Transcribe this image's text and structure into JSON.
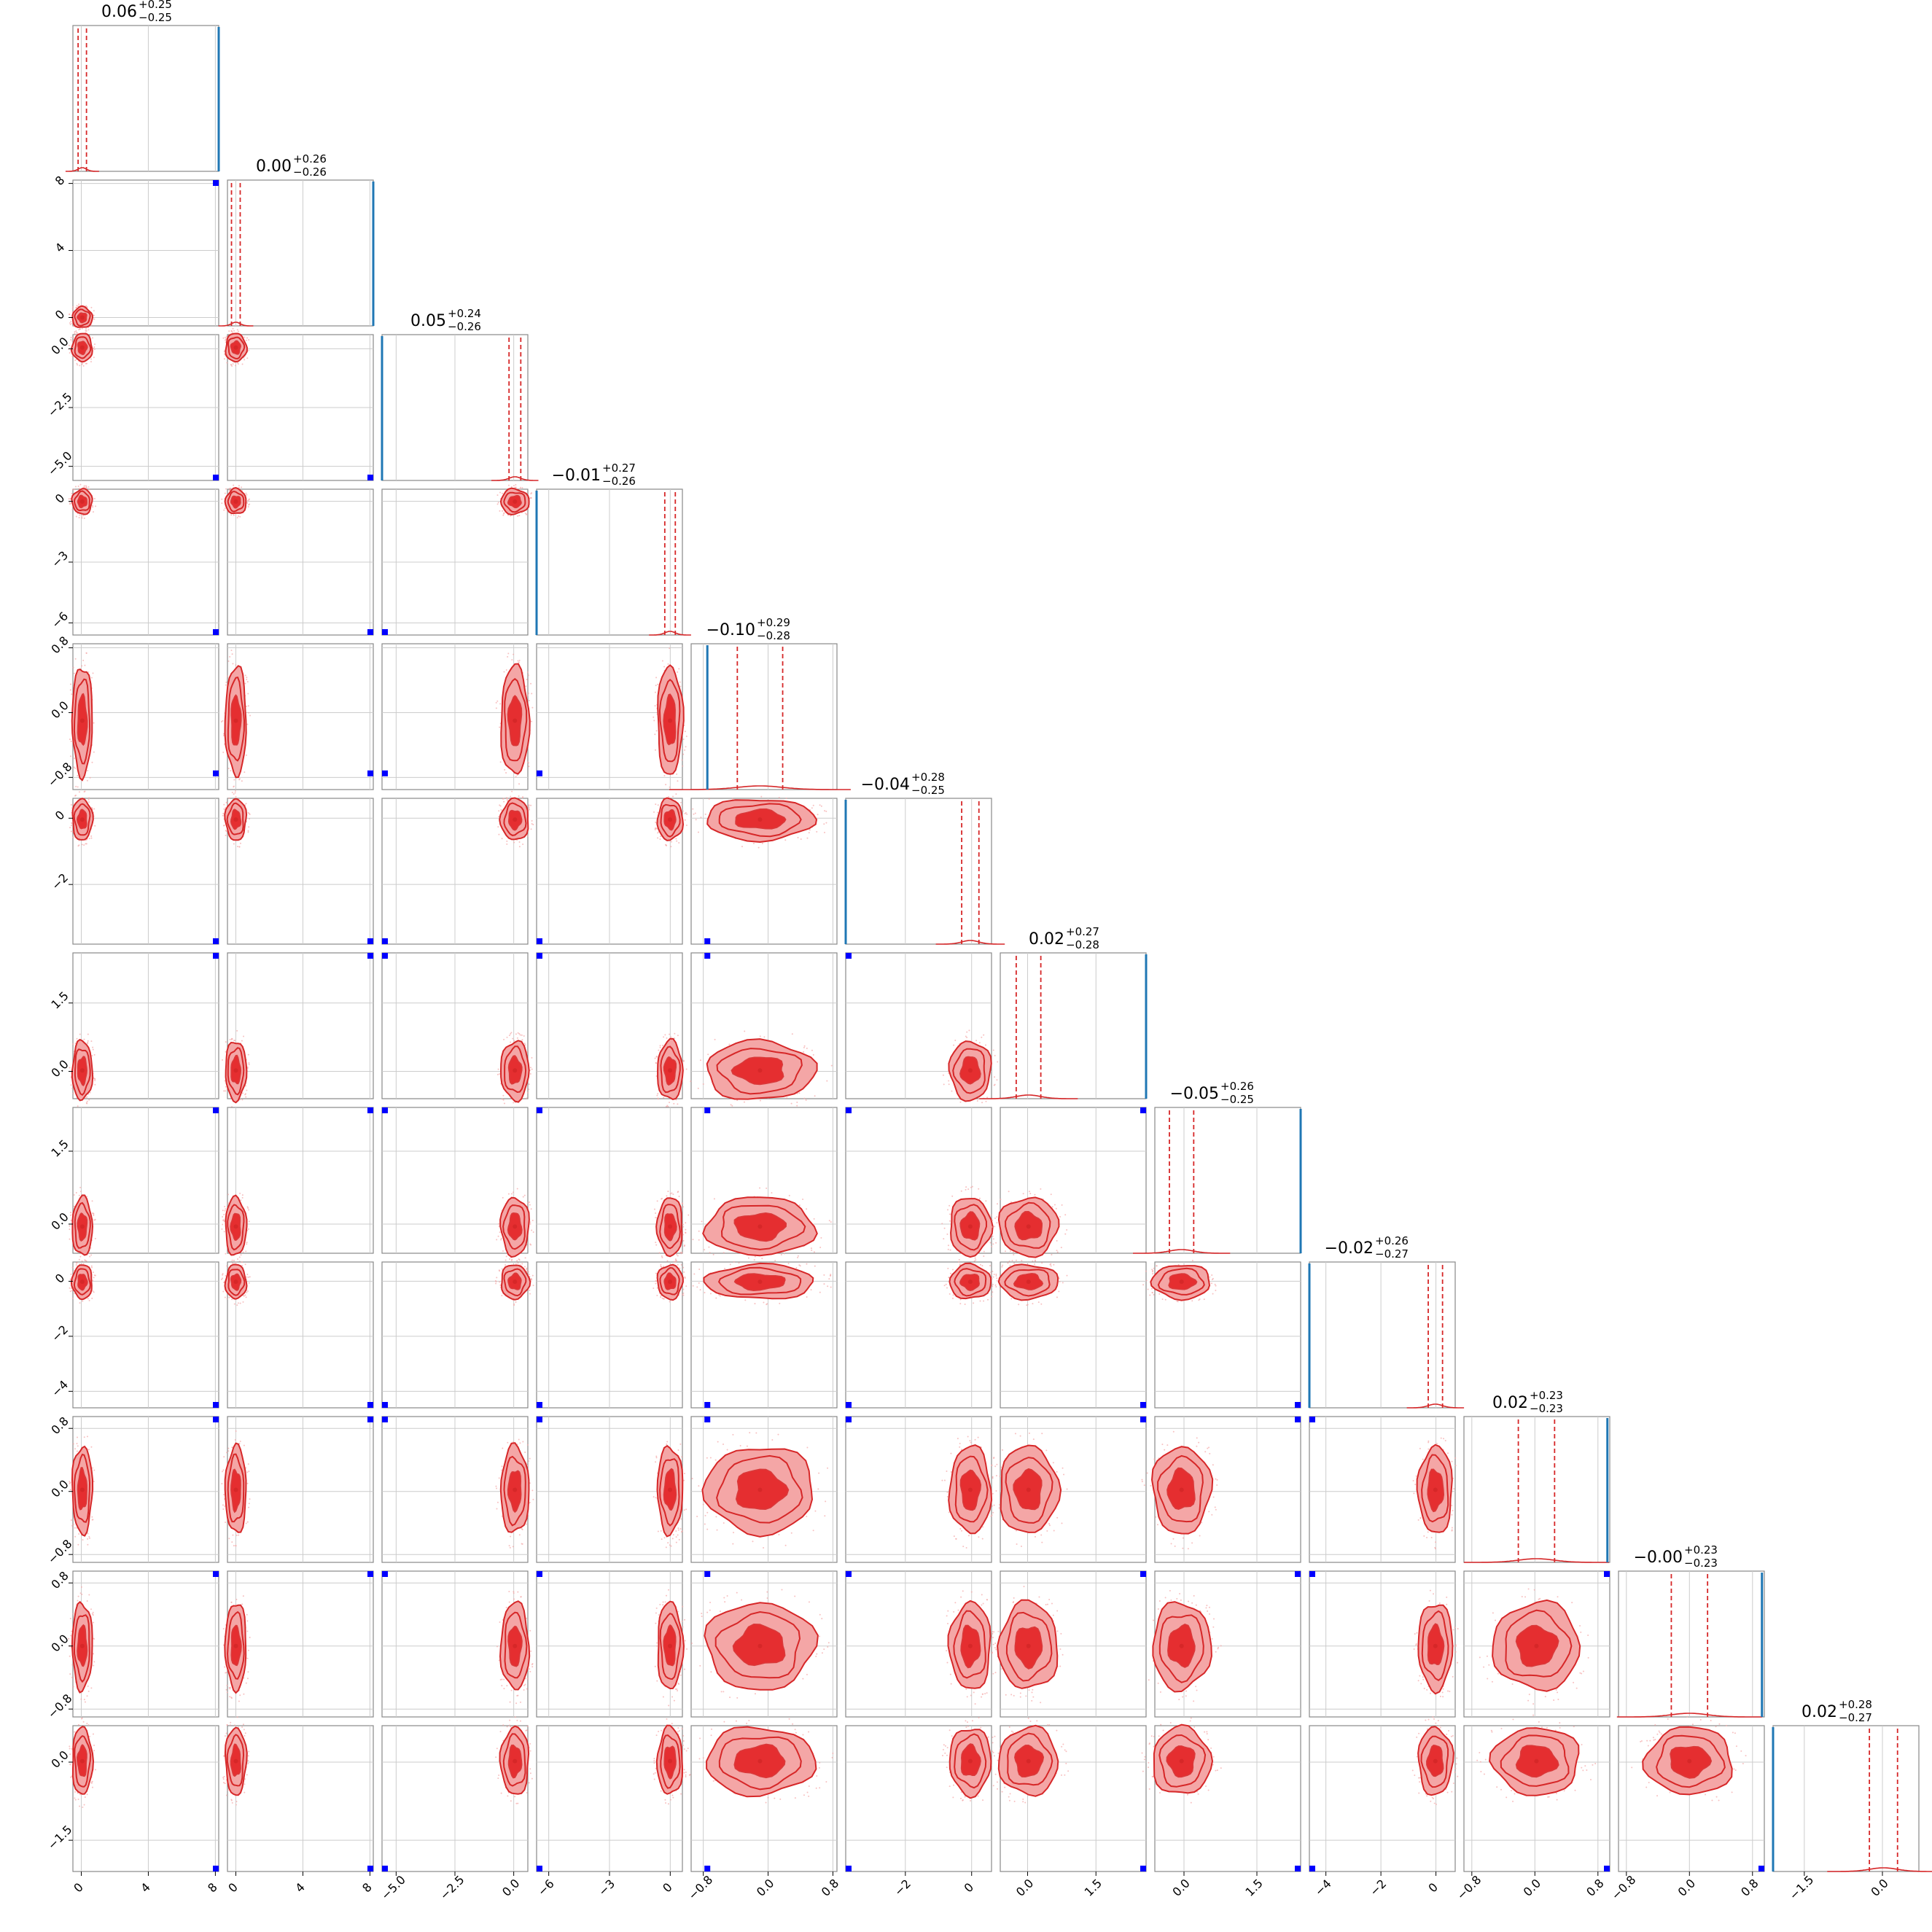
{
  "chart_data": {
    "type": "corner",
    "n_params": 12,
    "grid": true,
    "colors": {
      "contour": "#d62728",
      "fill_inner": "#e31a1c",
      "fill_outer": "#f4a6a6",
      "quantile_line": "#d62728",
      "truth_marker": "#0000ff",
      "truth_hist": "#1f77b4",
      "grid": "#cccccc",
      "frame": "#888888"
    },
    "params": [
      {
        "median": "0.06",
        "plus": "+0.25",
        "minus": "−0.25",
        "range": [
          -0.5,
          8.2
        ],
        "ticks": [
          0,
          4,
          8
        ],
        "tick_labels": [
          "0",
          "4",
          "8"
        ],
        "mean": 0.06,
        "sigma": 0.25,
        "truth": 8.2,
        "truth_y": null
      },
      {
        "median": "0.00",
        "plus": "+0.26",
        "minus": "−0.26",
        "range": [
          -0.5,
          8.2
        ],
        "ticks": [
          0,
          4,
          8
        ],
        "tick_labels": [
          "0",
          "4",
          "8"
        ],
        "mean": 0.0,
        "sigma": 0.26,
        "truth": 8.2,
        "truth_y": 8.2
      },
      {
        "median": "0.05",
        "plus": "+0.24",
        "minus": "−0.26",
        "range": [
          -5.6,
          0.6
        ],
        "ticks": [
          -5.0,
          -2.5,
          0.0
        ],
        "tick_labels": [
          "−5.0",
          "−2.5",
          "0.0"
        ],
        "mean": 0.05,
        "sigma": 0.25,
        "truth": -5.6,
        "truth_y": -5.6
      },
      {
        "median": "−0.01",
        "plus": "+0.27",
        "minus": "−0.26",
        "range": [
          -6.6,
          0.6
        ],
        "ticks": [
          -6,
          -3,
          0
        ],
        "tick_labels": [
          "−6",
          "−3",
          "0"
        ],
        "mean": -0.01,
        "sigma": 0.26,
        "truth": -6.6,
        "truth_y": -6.6
      },
      {
        "median": "−0.10",
        "plus": "+0.29",
        "minus": "−0.28",
        "range": [
          -0.95,
          0.85
        ],
        "ticks": [
          -0.8,
          0.0,
          0.8
        ],
        "tick_labels": [
          "−0.8",
          "0.0",
          "0.8"
        ],
        "mean": -0.1,
        "sigma": 0.28,
        "truth": -0.75,
        "truth_y": -0.75
      },
      {
        "median": "−0.04",
        "plus": "+0.28",
        "minus": "−0.25",
        "range": [
          -3.8,
          0.6
        ],
        "ticks": [
          -2,
          0
        ],
        "tick_labels": [
          "−2",
          "0"
        ],
        "mean": -0.04,
        "sigma": 0.26,
        "truth": -3.8,
        "truth_y": -3.8
      },
      {
        "median": "0.02",
        "plus": "+0.27",
        "minus": "−0.28",
        "range": [
          -0.6,
          2.6
        ],
        "ticks": [
          0.0,
          1.5
        ],
        "tick_labels": [
          "0.0",
          "1.5"
        ],
        "mean": 0.02,
        "sigma": 0.27,
        "truth": 2.6,
        "truth_y": 2.6
      },
      {
        "median": "−0.05",
        "plus": "+0.26",
        "minus": "−0.25",
        "range": [
          -0.6,
          2.4
        ],
        "ticks": [
          0.0,
          1.5
        ],
        "tick_labels": [
          "0.0",
          "1.5"
        ],
        "mean": -0.05,
        "sigma": 0.25,
        "truth": 2.4,
        "truth_y": 2.4
      },
      {
        "median": "−0.02",
        "plus": "+0.26",
        "minus": "−0.27",
        "range": [
          -4.6,
          0.7
        ],
        "ticks": [
          -4,
          -2,
          0
        ],
        "tick_labels": [
          "−4",
          "−2",
          "0"
        ],
        "mean": -0.02,
        "sigma": 0.26,
        "truth": -4.6,
        "truth_y": -4.6
      },
      {
        "median": "0.02",
        "plus": "+0.23",
        "minus": "−0.23",
        "range": [
          -0.9,
          0.95
        ],
        "ticks": [
          -0.8,
          0.0,
          0.8
        ],
        "tick_labels": [
          "−0.8",
          "0.0",
          "0.8"
        ],
        "mean": 0.02,
        "sigma": 0.23,
        "truth": 0.92,
        "truth_y": 0.92
      },
      {
        "median": "−0.00",
        "plus": "+0.23",
        "minus": "−0.23",
        "range": [
          -0.9,
          0.95
        ],
        "ticks": [
          -0.8,
          0.0,
          0.8
        ],
        "tick_labels": [
          "−0.8",
          "0.0",
          "0.8"
        ],
        "mean": 0.0,
        "sigma": 0.23,
        "truth": 0.92,
        "truth_y": 0.92
      },
      {
        "median": "0.02",
        "plus": "+0.28",
        "minus": "−0.27",
        "range": [
          -2.1,
          0.7
        ],
        "ticks": [
          -1.5,
          0.0
        ],
        "tick_labels": [
          "−1.5",
          "0.0"
        ],
        "mean": 0.02,
        "sigma": 0.27,
        "truth": -2.1,
        "truth_y": -2.1
      }
    ]
  }
}
